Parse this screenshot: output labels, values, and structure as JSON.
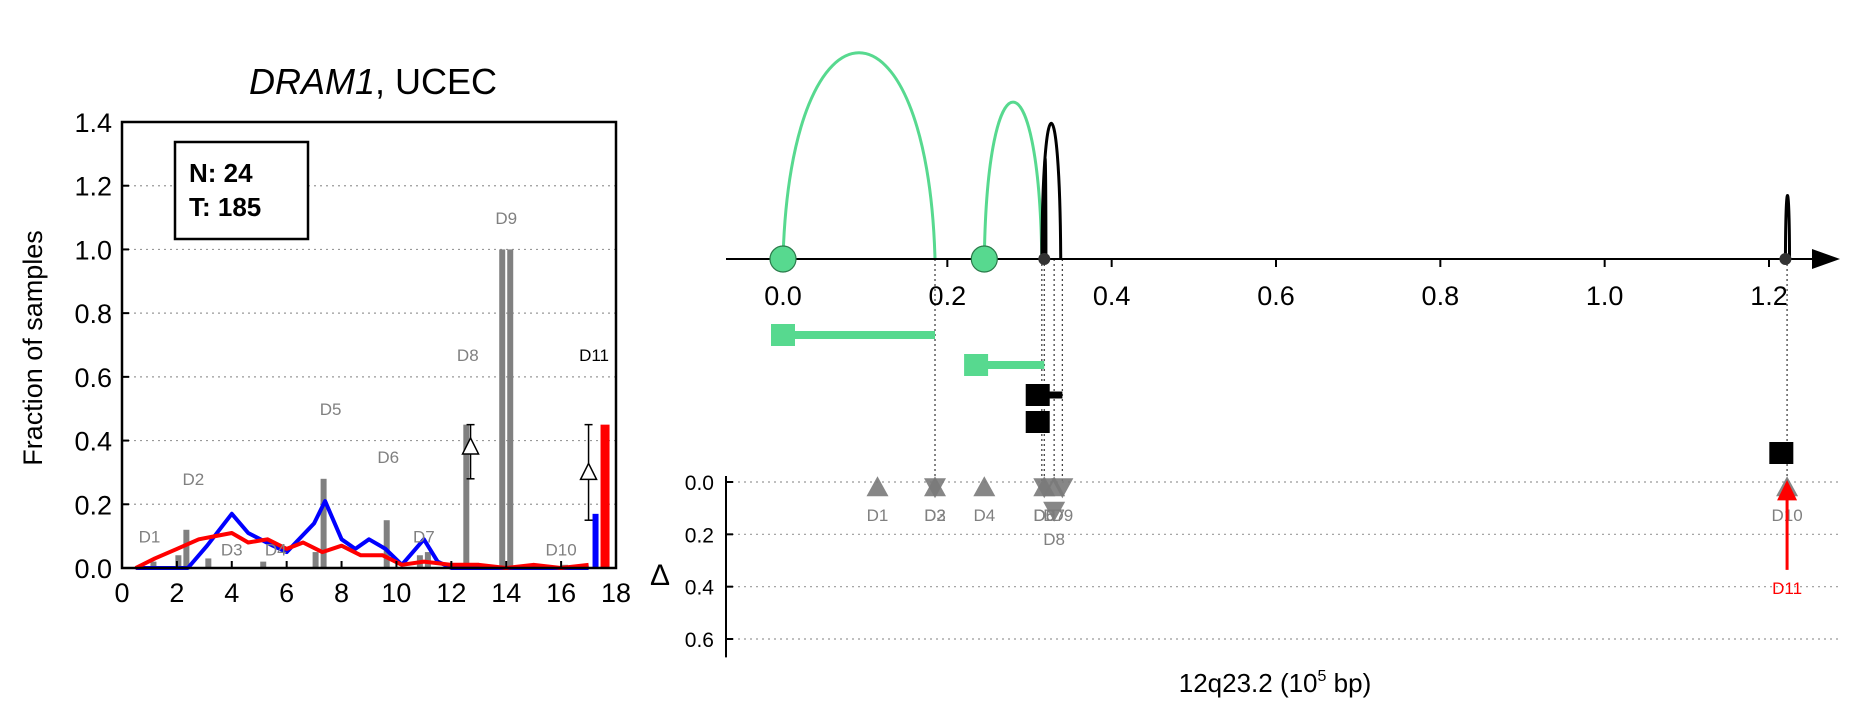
{
  "left_panel": {
    "title_gene": "DRAM1",
    "title_rest": ", UCEC",
    "ylabel": "Fraction of samples",
    "legend": {
      "n_label": "N: 24",
      "t_label": "T: 185"
    }
  },
  "right_panel": {
    "xlabel_main": "12q23.2 (10",
    "xlabel_sup": "5",
    "xlabel_unit": " bp)",
    "delta_label": "Δ"
  },
  "colors": {
    "normal": "#0000ff",
    "tumor": "#ff0000",
    "bar": "#808080",
    "arc_green": "#57d98f",
    "arc_black": "#000000",
    "grid": "#999999"
  },
  "chart_data": [
    {
      "type": "bar",
      "xlim": [
        0,
        18
      ],
      "ylim": [
        0,
        1.4
      ],
      "xticks": [
        0,
        2,
        4,
        6,
        8,
        10,
        12,
        14,
        16,
        18
      ],
      "yticks": [
        0.0,
        0.2,
        0.4,
        0.6,
        0.8,
        1.0,
        1.2,
        1.4
      ],
      "grid": "horizontal dotted",
      "bars": [
        {
          "x": 1.0,
          "normal": 0.0,
          "tumor": 0.02
        },
        {
          "x": 2.2,
          "normal": 0.04,
          "tumor": 0.12
        },
        {
          "x": 3.0,
          "normal": 0.0,
          "tumor": 0.03
        },
        {
          "x": 5.0,
          "normal": 0.0,
          "tumor": 0.02
        },
        {
          "x": 7.2,
          "normal": 0.05,
          "tumor": 0.28
        },
        {
          "x": 9.5,
          "normal": 0.0,
          "tumor": 0.15
        },
        {
          "x": 11.0,
          "normal": 0.04,
          "tumor": 0.05
        },
        {
          "x": 12.4,
          "normal": 0.0,
          "tumor": 0.45
        },
        {
          "x": 14.0,
          "normal": 1.0,
          "tumor": 1.0
        },
        {
          "x": 16.0,
          "normal": 0.0,
          "tumor": 0.01
        },
        {
          "x": 17.4,
          "normal": 0.17,
          "tumor": 0.45
        }
      ],
      "bar_labels": [
        {
          "label": "D1",
          "x": 1.0,
          "y": 0.08,
          "color": "#808080"
        },
        {
          "label": "D2",
          "x": 2.6,
          "y": 0.26,
          "color": "#808080"
        },
        {
          "label": "D3",
          "x": 4.0,
          "y": 0.04,
          "color": "#808080"
        },
        {
          "label": "D4",
          "x": 5.6,
          "y": 0.04,
          "color": "#808080"
        },
        {
          "label": "D5",
          "x": 7.6,
          "y": 0.48,
          "color": "#808080"
        },
        {
          "label": "D6",
          "x": 9.7,
          "y": 0.33,
          "color": "#808080"
        },
        {
          "label": "D7",
          "x": 11.0,
          "y": 0.08,
          "color": "#808080"
        },
        {
          "label": "D8",
          "x": 12.6,
          "y": 0.65,
          "color": "#808080"
        },
        {
          "label": "D9",
          "x": 14.0,
          "y": 1.08,
          "color": "#808080"
        },
        {
          "label": "D10",
          "x": 16.0,
          "y": 0.04,
          "color": "#808080"
        },
        {
          "label": "D11",
          "x": 17.2,
          "y": 0.65,
          "color": "#000000"
        }
      ],
      "series": [
        {
          "name": "",
          "color": "#0000ff",
          "x": [
            0.5,
            2.4,
            3.1,
            4.0,
            4.6,
            5.5,
            6.0,
            7.0,
            7.4,
            8.0,
            8.5,
            9.0,
            9.6,
            10.2,
            11.0,
            11.5,
            12.0,
            12.7,
            14.0,
            16.0,
            17.0
          ],
          "y": [
            0.0,
            0.0,
            0.07,
            0.17,
            0.11,
            0.07,
            0.05,
            0.14,
            0.21,
            0.09,
            0.06,
            0.09,
            0.06,
            0.01,
            0.09,
            0.02,
            0.0,
            0.0,
            0.0,
            0.0,
            0.0
          ]
        },
        {
          "name": "",
          "color": "#ff0000",
          "x": [
            0.5,
            1.2,
            2.0,
            2.8,
            3.4,
            4.0,
            4.6,
            5.3,
            6.0,
            6.6,
            7.3,
            8.0,
            8.7,
            9.5,
            10.2,
            11.0,
            12.0,
            13.0,
            14.0,
            15.0,
            16.0,
            17.0
          ],
          "y": [
            0.0,
            0.03,
            0.06,
            0.09,
            0.1,
            0.11,
            0.08,
            0.09,
            0.06,
            0.08,
            0.05,
            0.07,
            0.04,
            0.04,
            0.01,
            0.02,
            0.01,
            0.01,
            0.0,
            0.01,
            0.0,
            0.01
          ]
        }
      ],
      "delta_markers": [
        {
          "x": 12.7,
          "y": 0.38,
          "err_low": 0.28,
          "err_high": 0.45
        },
        {
          "x": 17.0,
          "y": 0.3,
          "err_low": 0.15,
          "err_high": 0.45
        }
      ]
    },
    {
      "type": "scatter",
      "xlim": [
        -0.07,
        1.32
      ],
      "xticks": [
        0.0,
        0.2,
        0.4,
        0.6,
        0.8,
        1.0,
        1.2
      ],
      "delta_ticks": [
        0.0,
        0.2,
        0.4,
        0.6
      ],
      "arcs": [
        {
          "x_start": 0.0,
          "x_end": 0.185,
          "height": 1.0,
          "color": "#57d98f"
        },
        {
          "x_start": 0.245,
          "x_end": 0.315,
          "height": 0.72,
          "color": "#57d98f"
        },
        {
          "x_start": 0.315,
          "x_end": 0.338,
          "height": 0.6,
          "color": "#000000"
        },
        {
          "x_start": 0.318,
          "x_end": 0.32,
          "height": 0.4,
          "color": "#000000"
        },
        {
          "x_start": 1.22,
          "x_end": 1.225,
          "height": 0.19,
          "color": "#000000"
        }
      ],
      "axis_points": [
        {
          "x": 0.0,
          "style": "green-circle"
        },
        {
          "x": 0.245,
          "style": "green-circle"
        },
        {
          "x": 0.318,
          "style": "black-dot"
        },
        {
          "x": 1.22,
          "style": "black-dot"
        }
      ],
      "transcripts": [
        {
          "x_square": 0.0,
          "x_end": 0.185,
          "row": 0,
          "color": "#57d98f"
        },
        {
          "x_square": 0.235,
          "x_end": 0.318,
          "row": 1,
          "color": "#57d98f"
        },
        {
          "x_square": 0.31,
          "x_end": 0.34,
          "row": 2,
          "color": "#000000"
        },
        {
          "x_square": 0.31,
          "x_end": 0.318,
          "row": 3,
          "color": "#000000"
        },
        {
          "x_square": 1.215,
          "x_end": 1.225,
          "row": 4,
          "color": "#000000"
        }
      ],
      "delta_triangles": [
        {
          "label": "D1",
          "x": 0.115,
          "delta": 0.02,
          "dir": "up",
          "label_below": true
        },
        {
          "label": "D2",
          "x": 0.185,
          "delta": 0.02,
          "dir": "up",
          "label_below": true
        },
        {
          "label": "D3",
          "x": 0.185,
          "delta": 0.02,
          "dir": "down",
          "label_below": true
        },
        {
          "label": "D4",
          "x": 0.245,
          "delta": 0.02,
          "dir": "up",
          "label_below": true
        },
        {
          "label": "D5",
          "x": 0.318,
          "delta": 0.02,
          "dir": "up",
          "label_below": true
        },
        {
          "label": "D6",
          "x": 0.318,
          "delta": 0.02,
          "dir": "down",
          "label_below": true
        },
        {
          "label": "D7",
          "x": 0.33,
          "delta": 0.02,
          "dir": "up",
          "label_below": true
        },
        {
          "label": "D9",
          "x": 0.34,
          "delta": 0.02,
          "dir": "down",
          "label_below": true
        },
        {
          "label": "D8",
          "x": 0.33,
          "delta": 0.11,
          "dir": "down",
          "label_below": true
        },
        {
          "label": "D10",
          "x": 1.222,
          "delta": 0.02,
          "dir": "up",
          "label_below": true
        }
      ],
      "d11_arrow": {
        "label": "D11",
        "x": 1.222,
        "delta_base": 0.29,
        "color": "#ff0000"
      },
      "vlines": [
        0.185,
        0.315,
        0.318,
        0.33,
        0.34,
        1.222
      ]
    }
  ]
}
